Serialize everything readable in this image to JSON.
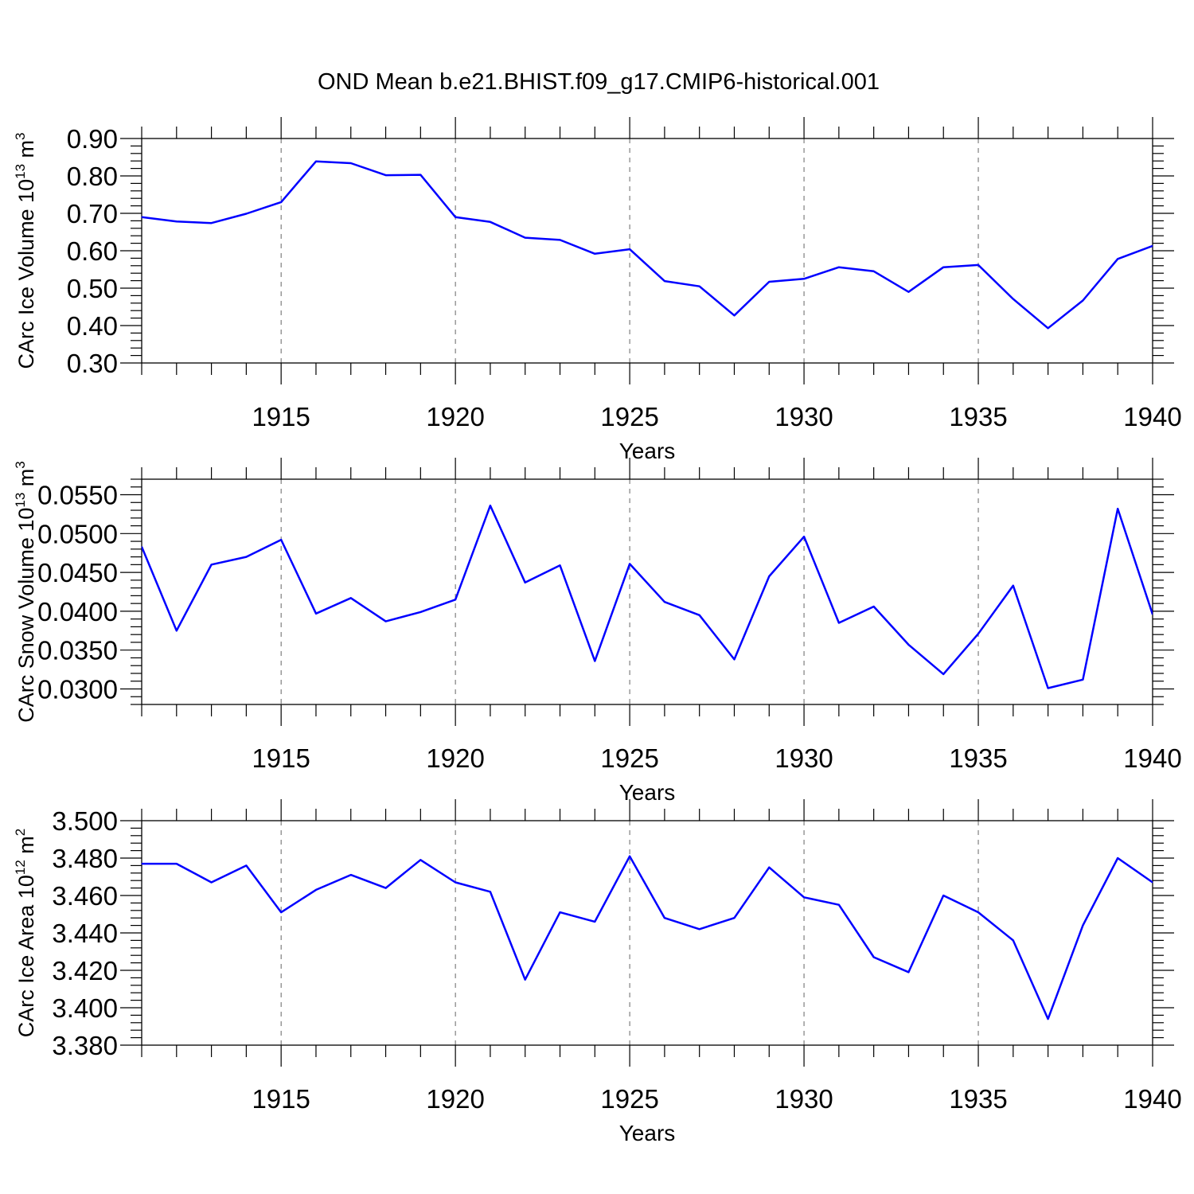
{
  "title": "OND Mean b.e21.BHIST.f09_g17.CMIP6-historical.001",
  "colors": {
    "line": "#0000ff",
    "axis": "#000000",
    "grid": "#666666"
  },
  "chart_data": [
    {
      "type": "line",
      "xlabel": "Years",
      "ylabel": "CArc Ice Volume 10",
      "ylabel_sup": "13",
      "ylabel_unit": "m",
      "ylabel_unit_sup": "3",
      "xlim": [
        1911,
        1940
      ],
      "ylim": [
        0.3,
        0.9
      ],
      "y_ticks": [
        "0.30",
        "0.40",
        "0.50",
        "0.60",
        "0.70",
        "0.80",
        "0.90"
      ],
      "x_ticks": [
        "1915",
        "1920",
        "1925",
        "1930",
        "1935",
        "1940"
      ],
      "x": [
        1911,
        1912,
        1913,
        1914,
        1915,
        1916,
        1917,
        1918,
        1919,
        1920,
        1921,
        1922,
        1923,
        1924,
        1925,
        1926,
        1927,
        1928,
        1929,
        1930,
        1931,
        1932,
        1933,
        1934,
        1935,
        1936,
        1937,
        1938,
        1939,
        1940
      ],
      "values": [
        0.69,
        0.678,
        0.674,
        0.699,
        0.73,
        0.839,
        0.834,
        0.802,
        0.803,
        0.69,
        0.677,
        0.635,
        0.629,
        0.592,
        0.604,
        0.519,
        0.505,
        0.427,
        0.517,
        0.525,
        0.556,
        0.545,
        0.49,
        0.556,
        0.562,
        0.471,
        0.393,
        0.467,
        0.578,
        0.613
      ]
    },
    {
      "type": "line",
      "xlabel": "Years",
      "ylabel": "CArc Snow Volume 10",
      "ylabel_sup": "13",
      "ylabel_unit": "m",
      "ylabel_unit_sup": "3",
      "xlim": [
        1911,
        1940
      ],
      "ylim": [
        0.028,
        0.057
      ],
      "y_ticks": [
        "0.0300",
        "0.0350",
        "0.0400",
        "0.0450",
        "0.0500",
        "0.0550"
      ],
      "x_ticks": [
        "1915",
        "1920",
        "1925",
        "1930",
        "1935",
        "1940"
      ],
      "x": [
        1911,
        1912,
        1913,
        1914,
        1915,
        1916,
        1917,
        1918,
        1919,
        1920,
        1921,
        1922,
        1923,
        1924,
        1925,
        1926,
        1927,
        1928,
        1929,
        1930,
        1931,
        1932,
        1933,
        1934,
        1935,
        1936,
        1937,
        1938,
        1939,
        1940
      ],
      "values": [
        0.0483,
        0.0375,
        0.046,
        0.047,
        0.0492,
        0.0397,
        0.0417,
        0.0387,
        0.0399,
        0.0415,
        0.0536,
        0.0437,
        0.0459,
        0.0336,
        0.0461,
        0.0412,
        0.0395,
        0.0338,
        0.0445,
        0.0496,
        0.0385,
        0.0406,
        0.0357,
        0.0319,
        0.0371,
        0.0433,
        0.0301,
        0.0312,
        0.0532,
        0.0396
      ]
    },
    {
      "type": "line",
      "xlabel": "Years",
      "ylabel": "CArc Ice Area 10",
      "ylabel_sup": "12",
      "ylabel_unit": "m",
      "ylabel_unit_sup": "2",
      "xlim": [
        1911,
        1940
      ],
      "ylim": [
        3.38,
        3.5
      ],
      "y_ticks": [
        "3.380",
        "3.400",
        "3.420",
        "3.440",
        "3.460",
        "3.480",
        "3.500"
      ],
      "x_ticks": [
        "1915",
        "1920",
        "1925",
        "1930",
        "1935",
        "1940"
      ],
      "x": [
        1911,
        1912,
        1913,
        1914,
        1915,
        1916,
        1917,
        1918,
        1919,
        1920,
        1921,
        1922,
        1923,
        1924,
        1925,
        1926,
        1927,
        1928,
        1929,
        1930,
        1931,
        1932,
        1933,
        1934,
        1935,
        1936,
        1937,
        1938,
        1939,
        1940
      ],
      "values": [
        3.477,
        3.477,
        3.467,
        3.476,
        3.451,
        3.463,
        3.471,
        3.464,
        3.479,
        3.467,
        3.462,
        3.415,
        3.451,
        3.446,
        3.481,
        3.448,
        3.442,
        3.448,
        3.475,
        3.459,
        3.455,
        3.427,
        3.419,
        3.46,
        3.451,
        3.436,
        3.394,
        3.444,
        3.48,
        3.467
      ]
    }
  ]
}
